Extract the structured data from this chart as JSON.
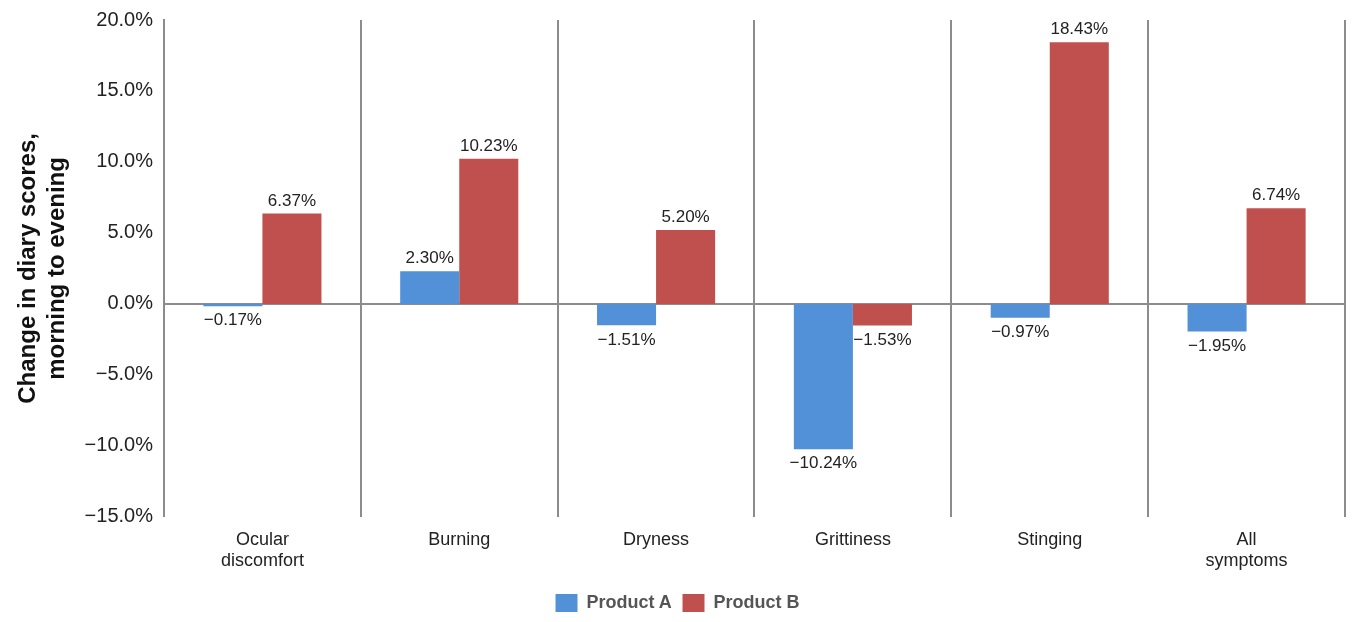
{
  "chart_data": {
    "type": "bar",
    "ylabel": "Change in diary scores, morning to evening",
    "categories": [
      "Ocular discomfort",
      "Burning",
      "Dryness",
      "Grittiness",
      "Stinging",
      "All symptoms"
    ],
    "series": [
      {
        "name": "Product A",
        "color": "#5290d8",
        "values": [
          -0.17,
          2.3,
          -1.51,
          -10.24,
          -0.97,
          -1.95
        ],
        "value_labels": [
          "−0.17%",
          "2.30%",
          "−1.51%",
          "−10.24%",
          "−0.97%",
          "−1.95%"
        ]
      },
      {
        "name": "Product B",
        "color": "#c0504d",
        "values": [
          6.37,
          10.23,
          5.2,
          -1.53,
          18.43,
          6.74
        ],
        "value_labels": [
          "6.37%",
          "10.23%",
          "5.20%",
          "−1.53%",
          "18.43%",
          "6.74%"
        ]
      }
    ],
    "ylim": [
      -15,
      20
    ],
    "yticks": [
      {
        "value": -15,
        "label": "−15.0%"
      },
      {
        "value": -10,
        "label": "−10.0%"
      },
      {
        "value": -5,
        "label": "−5.0%"
      },
      {
        "value": 0,
        "label": "0.0%"
      },
      {
        "value": 5,
        "label": "5.0%"
      },
      {
        "value": 10,
        "label": "10.0%"
      },
      {
        "value": 15,
        "label": "15.0%"
      },
      {
        "value": 20,
        "label": "20.0%"
      }
    ],
    "ref_lines": [
      {
        "axis": "y",
        "value": 0,
        "color": "#8c8c8c"
      }
    ],
    "grid": "x",
    "legend": "bottom"
  }
}
